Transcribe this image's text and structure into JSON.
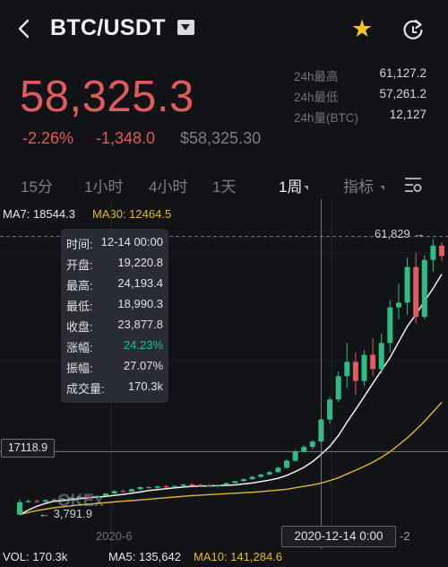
{
  "header": {
    "pair": "BTC/USDT"
  },
  "price": {
    "last": "58,325.3",
    "change_pct": "-2.26%",
    "change_abs": "-1,348.0",
    "usd": "$58,325.30"
  },
  "stats": [
    {
      "label": "24h最高",
      "value": "61,127.2"
    },
    {
      "label": "24h最低",
      "value": "57,261.2"
    },
    {
      "label": "24h量(BTC)",
      "value": "12,127"
    }
  ],
  "tabs": [
    "15分",
    "1小时",
    "4小时",
    "1天",
    "1周",
    "指标"
  ],
  "indicators": {
    "ma7": "MA7: 18544.3",
    "ma30": "MA30: 12464.5"
  },
  "tooltip": [
    {
      "k": "时间:",
      "v": "12-14 00:00"
    },
    {
      "k": "开盘:",
      "v": "19,220.8"
    },
    {
      "k": "最高:",
      "v": "24,193.4"
    },
    {
      "k": "最低:",
      "v": "18,990.3"
    },
    {
      "k": "收盘:",
      "v": "23,877.8"
    },
    {
      "k": "涨幅:",
      "v": "24.23%"
    },
    {
      "k": "振幅:",
      "v": "27.07%"
    },
    {
      "k": "成交量:",
      "v": "170.3k"
    }
  ],
  "chart_labels": {
    "y_cursor": "17118.9",
    "x_cursor": "2020-12-14  0:00",
    "date_left": "2020-6",
    "date_right": "-2",
    "max": "61,829 →",
    "min": "← 3,791.9",
    "watermark": "OKEx"
  },
  "bottom": {
    "vol": "VOL: 170.3k",
    "ma5": "MA5: 135,642",
    "ma10": "MA10: 141,284.6"
  },
  "colors": {
    "up": "#2ebd85",
    "down": "#e05b5b",
    "accent": "#f5c518",
    "ma30": "#e0b832"
  },
  "chart_data": {
    "type": "candlestick",
    "price_range": [
      1500,
      65000
    ],
    "candles": [
      [
        3850,
        7100,
        3791.9,
        6450
      ],
      [
        6450,
        7050,
        6400,
        6700
      ],
      [
        6700,
        6950,
        6300,
        6550
      ],
      [
        6550,
        7000,
        6400,
        6900
      ],
      [
        6900,
        7200,
        6700,
        7000
      ],
      [
        7000,
        7400,
        6800,
        7200
      ],
      [
        7200,
        7600,
        7000,
        7400
      ],
      [
        7400,
        7800,
        7200,
        7600
      ],
      [
        7600,
        7900,
        7300,
        7500
      ],
      [
        7500,
        7900,
        7300,
        7800
      ],
      [
        7800,
        8400,
        7700,
        8300
      ],
      [
        8300,
        9000,
        8200,
        8800
      ],
      [
        8800,
        9200,
        8500,
        8700
      ],
      [
        8700,
        9400,
        8600,
        9200
      ],
      [
        9200,
        9800,
        9000,
        9600
      ],
      [
        9600,
        9900,
        9300,
        9500
      ],
      [
        9500,
        9900,
        9200,
        9800
      ],
      [
        9800,
        10100,
        9400,
        9700
      ],
      [
        9700,
        10000,
        9400,
        9900
      ],
      [
        9900,
        10300,
        9700,
        10200
      ],
      [
        10200,
        10500,
        9900,
        10100
      ],
      [
        10100,
        10400,
        9800,
        10000
      ],
      [
        10000,
        10300,
        9700,
        9900
      ],
      [
        9900,
        10200,
        9600,
        10100
      ],
      [
        10100,
        10600,
        10000,
        10500
      ],
      [
        10500,
        11000,
        10400,
        10900
      ],
      [
        10900,
        11500,
        10800,
        11300
      ],
      [
        11300,
        12000,
        11200,
        11800
      ],
      [
        11800,
        12500,
        11600,
        12300
      ],
      [
        12300,
        13000,
        12100,
        12800
      ],
      [
        12800,
        14000,
        12700,
        13700
      ],
      [
        13700,
        15500,
        13500,
        15200
      ],
      [
        15200,
        17500,
        15000,
        17100
      ],
      [
        17100,
        18500,
        16900,
        18100
      ],
      [
        18100,
        19500,
        17600,
        19220.8
      ],
      [
        19220.8,
        24193.4,
        18990.3,
        23877.8
      ],
      [
        23877.8,
        28500,
        23000,
        28100
      ],
      [
        28100,
        34000,
        27500,
        33000
      ],
      [
        33000,
        40000,
        30500,
        36000
      ],
      [
        36000,
        38000,
        29000,
        32000
      ],
      [
        32000,
        38500,
        31000,
        37500
      ],
      [
        37500,
        41000,
        33000,
        34500
      ],
      [
        34500,
        42000,
        33500,
        40000
      ],
      [
        40000,
        49000,
        38000,
        47500
      ],
      [
        47500,
        52500,
        45000,
        48500
      ],
      [
        48500,
        58000,
        46000,
        56000
      ],
      [
        56000,
        59000,
        44000,
        45500
      ],
      [
        45500,
        58500,
        45000,
        57500
      ],
      [
        57500,
        61829,
        55000,
        60500
      ],
      [
        60500,
        61200,
        57261.2,
        58325.3
      ]
    ],
    "ma7": [
      3850,
      4800,
      5600,
      6200,
      6650,
      6800,
      7000,
      7200,
      7400,
      7550,
      7700,
      7900,
      8100,
      8350,
      8600,
      8900,
      9100,
      9300,
      9500,
      9650,
      9800,
      9850,
      9900,
      9950,
      10000,
      10100,
      10300,
      10500,
      10800,
      11100,
      11500,
      12100,
      12900,
      13800,
      15000,
      16500,
      18200,
      20500,
      23300,
      26000,
      28700,
      31500,
      34200,
      36900,
      40200,
      43500,
      46000,
      48800,
      51500,
      54500
    ],
    "ma30": [
      3850,
      4300,
      4700,
      5000,
      5300,
      5500,
      5700,
      5900,
      6050,
      6200,
      6350,
      6500,
      6650,
      6800,
      6950,
      7100,
      7250,
      7400,
      7550,
      7700,
      7850,
      7950,
      8050,
      8150,
      8250,
      8350,
      8450,
      8550,
      8700,
      8850,
      9000,
      9200,
      9500,
      9800,
      10100,
      10500,
      11000,
      11600,
      12400,
      13200,
      14000,
      14900,
      15900,
      17100,
      18500,
      20000,
      21700,
      23500,
      25500,
      27500
    ]
  }
}
